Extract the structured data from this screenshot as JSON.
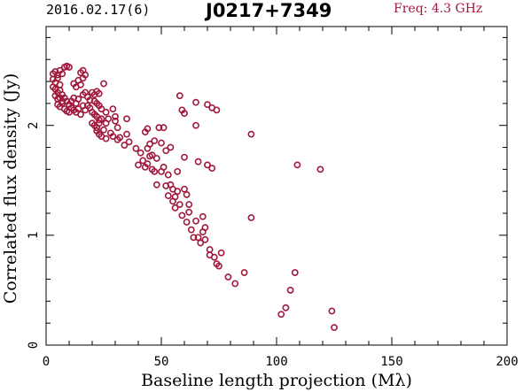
{
  "header": {
    "date_label": "2016.02.17(6)",
    "source_name": "J0217+7349",
    "freq_label": "Freq: 4.3 GHz"
  },
  "colors": {
    "point": "#a0193c",
    "axis": "#000000"
  },
  "chart_data": {
    "type": "scatter",
    "title": "J0217+7349",
    "xlabel": "Baseline length projection (Mλ)",
    "ylabel": "Correlated flux density (Jy)",
    "xlim": [
      0,
      200
    ],
    "ylim": [
      0,
      2.9
    ],
    "xticks": [
      0,
      50,
      100,
      150,
      200
    ],
    "yticks": [
      0,
      1,
      2
    ],
    "x_minor_step": 10,
    "y_minor_step": 0.2,
    "grid": false,
    "legend": "none",
    "marker": "open-circle",
    "points": [
      [
        3,
        2.47
      ],
      [
        4,
        2.49
      ],
      [
        5,
        2.46
      ],
      [
        6,
        2.5
      ],
      [
        7,
        2.47
      ],
      [
        8,
        2.53
      ],
      [
        9,
        2.54
      ],
      [
        10,
        2.53
      ],
      [
        3,
        2.42
      ],
      [
        4,
        2.39
      ],
      [
        5,
        2.43
      ],
      [
        6,
        2.37
      ],
      [
        3,
        2.35
      ],
      [
        4,
        2.33
      ],
      [
        5,
        2.3
      ],
      [
        6,
        2.32
      ],
      [
        4,
        2.27
      ],
      [
        5,
        2.24
      ],
      [
        6,
        2.25
      ],
      [
        7,
        2.22
      ],
      [
        5,
        2.19
      ],
      [
        6,
        2.17
      ],
      [
        7,
        2.2
      ],
      [
        8,
        2.15
      ],
      [
        7,
        2.28
      ],
      [
        8,
        2.25
      ],
      [
        9,
        2.22
      ],
      [
        10,
        2.19
      ],
      [
        9,
        2.13
      ],
      [
        10,
        2.12
      ],
      [
        11,
        2.16
      ],
      [
        12,
        2.14
      ],
      [
        11,
        2.22
      ],
      [
        12,
        2.25
      ],
      [
        13,
        2.2
      ],
      [
        14,
        2.24
      ],
      [
        13,
        2.12
      ],
      [
        14,
        2.15
      ],
      [
        15,
        2.1
      ],
      [
        16,
        2.18
      ],
      [
        12,
        2.38
      ],
      [
        13,
        2.35
      ],
      [
        14,
        2.41
      ],
      [
        15,
        2.37
      ],
      [
        16,
        2.43
      ],
      [
        15,
        2.48
      ],
      [
        16,
        2.5
      ],
      [
        17,
        2.46
      ],
      [
        16,
        2.28
      ],
      [
        17,
        2.3
      ],
      [
        18,
        2.26
      ],
      [
        19,
        2.23
      ],
      [
        17,
        2.14
      ],
      [
        18,
        2.18
      ],
      [
        19,
        2.16
      ],
      [
        20,
        2.12
      ],
      [
        20,
        2.3
      ],
      [
        21,
        2.28
      ],
      [
        22,
        2.31
      ],
      [
        23,
        2.29
      ],
      [
        21,
        2.22
      ],
      [
        22,
        2.2
      ],
      [
        23,
        2.18
      ],
      [
        24,
        2.15
      ],
      [
        21,
        2.1
      ],
      [
        22,
        2.08
      ],
      [
        23,
        2.05
      ],
      [
        24,
        2.06
      ],
      [
        20,
        2.02
      ],
      [
        21,
        2.0
      ],
      [
        22,
        1.98
      ],
      [
        23,
        2.02
      ],
      [
        22,
        1.95
      ],
      [
        23,
        1.92
      ],
      [
        24,
        1.9
      ],
      [
        26,
        1.88
      ],
      [
        25,
        1.96
      ],
      [
        26,
        2.02
      ],
      [
        27,
        2.06
      ],
      [
        26,
        2.12
      ],
      [
        25,
        2.38
      ],
      [
        28,
        1.93
      ],
      [
        29,
        1.9
      ],
      [
        29,
        2.15
      ],
      [
        30,
        2.08
      ],
      [
        30,
        2.04
      ],
      [
        31,
        1.98
      ],
      [
        31,
        1.87
      ],
      [
        32,
        1.89
      ],
      [
        34,
        1.82
      ],
      [
        35,
        1.92
      ],
      [
        36,
        1.85
      ],
      [
        35,
        2.06
      ],
      [
        39,
        1.79
      ],
      [
        40,
        1.64
      ],
      [
        41,
        1.75
      ],
      [
        42,
        1.68
      ],
      [
        43,
        1.62
      ],
      [
        44,
        1.65
      ],
      [
        44,
        1.79
      ],
      [
        45,
        1.83
      ],
      [
        43,
        1.94
      ],
      [
        44,
        1.97
      ],
      [
        45,
        1.72
      ],
      [
        46,
        1.6
      ],
      [
        47,
        1.58
      ],
      [
        46,
        1.73
      ],
      [
        47,
        1.86
      ],
      [
        48,
        1.7
      ],
      [
        48,
        1.46
      ],
      [
        49,
        1.98
      ],
      [
        50,
        1.84
      ],
      [
        50,
        1.58
      ],
      [
        51,
        1.62
      ],
      [
        51,
        1.98
      ],
      [
        52,
        1.77
      ],
      [
        52,
        1.45
      ],
      [
        53,
        1.55
      ],
      [
        53,
        1.36
      ],
      [
        54,
        1.46
      ],
      [
        54,
        1.8
      ],
      [
        55,
        1.42
      ],
      [
        55,
        1.31
      ],
      [
        56,
        1.35
      ],
      [
        56,
        1.25
      ],
      [
        57,
        1.4
      ],
      [
        57,
        1.58
      ],
      [
        58,
        2.27
      ],
      [
        58,
        1.28
      ],
      [
        59,
        1.18
      ],
      [
        59,
        2.14
      ],
      [
        60,
        2.11
      ],
      [
        60,
        1.71
      ],
      [
        60,
        1.42
      ],
      [
        61,
        1.12
      ],
      [
        61,
        1.37
      ],
      [
        62,
        1.28
      ],
      [
        62,
        1.21
      ],
      [
        63,
        1.05
      ],
      [
        64,
        0.98
      ],
      [
        65,
        1.13
      ],
      [
        65,
        2.0
      ],
      [
        65,
        2.21
      ],
      [
        66,
        1.67
      ],
      [
        66,
        0.98
      ],
      [
        67,
        0.93
      ],
      [
        68,
        1.03
      ],
      [
        68,
        1.17
      ],
      [
        69,
        1.07
      ],
      [
        69,
        0.96
      ],
      [
        70,
        1.64
      ],
      [
        70,
        2.19
      ],
      [
        71,
        0.82
      ],
      [
        71,
        0.87
      ],
      [
        72,
        1.61
      ],
      [
        72,
        2.16
      ],
      [
        73,
        0.8
      ],
      [
        74,
        2.14
      ],
      [
        74,
        0.74
      ],
      [
        75,
        0.72
      ],
      [
        76,
        0.84
      ],
      [
        79,
        0.62
      ],
      [
        82,
        0.56
      ],
      [
        86,
        0.66
      ],
      [
        89,
        1.92
      ],
      [
        89,
        1.16
      ],
      [
        102,
        0.28
      ],
      [
        104,
        0.34
      ],
      [
        106,
        0.5
      ],
      [
        108,
        0.66
      ],
      [
        109,
        1.64
      ],
      [
        119,
        1.6
      ],
      [
        124,
        0.31
      ],
      [
        125,
        0.16
      ]
    ]
  }
}
